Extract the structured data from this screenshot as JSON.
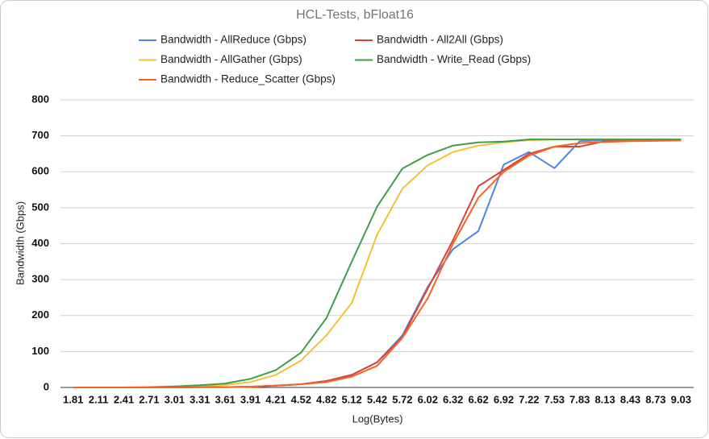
{
  "chart_data": {
    "type": "line",
    "title": "HCL-Tests, bFloat16",
    "x_label": "Log(Bytes)",
    "y_label": "Bandwidth (Gbps)",
    "categories": [
      "1.81",
      "2.11",
      "2.41",
      "2.71",
      "3.01",
      "3.31",
      "3.61",
      "3.91",
      "4.21",
      "4.52",
      "4.82",
      "5.12",
      "5.42",
      "5.72",
      "6.02",
      "6.32",
      "6.62",
      "6.92",
      "7.22",
      "7.53",
      "7.83",
      "8.13",
      "8.43",
      "8.73",
      "9.03"
    ],
    "series": [
      {
        "name": "Bandwidth - AllReduce (Gbps)",
        "color": "#4a86e8",
        "values": [
          0,
          0,
          0,
          0,
          0,
          1,
          1,
          2,
          5,
          9,
          18,
          35,
          70,
          145,
          280,
          385,
          435,
          620,
          655,
          610,
          685,
          688,
          688,
          689,
          690
        ]
      },
      {
        "name": "Bandwidth - All2All (Gbps)",
        "color": "#db4437",
        "values": [
          0,
          0,
          0,
          0,
          0,
          1,
          1,
          2,
          5,
          9,
          18,
          35,
          70,
          140,
          275,
          410,
          560,
          605,
          650,
          670,
          670,
          685,
          686,
          688,
          688
        ]
      },
      {
        "name": "Bandwidth - AllGather (Gbps)",
        "color": "#f1c232",
        "values": [
          0,
          0,
          0,
          1,
          2,
          4,
          7,
          15,
          35,
          75,
          145,
          235,
          425,
          553,
          618,
          655,
          673,
          682,
          688,
          690,
          690,
          690,
          690,
          690,
          690
        ]
      },
      {
        "name": "Bandwidth - Write_Read (Gbps)",
        "color": "#3aa14a",
        "values": [
          0,
          0,
          0,
          1,
          3,
          6,
          11,
          24,
          48,
          97,
          193,
          350,
          503,
          609,
          647,
          673,
          682,
          684,
          690,
          690,
          690,
          690,
          690,
          690,
          690
        ]
      },
      {
        "name": "Bandwidth - Reduce_Scatter (Gbps)",
        "color": "#f46524",
        "values": [
          0,
          0,
          0,
          0,
          0,
          1,
          1,
          2,
          5,
          9,
          15,
          30,
          60,
          138,
          248,
          400,
          528,
          600,
          645,
          670,
          680,
          683,
          685,
          686,
          687
        ]
      }
    ],
    "ylim": [
      0,
      800
    ],
    "yticks": [
      0,
      100,
      200,
      300,
      400,
      500,
      600,
      700,
      800
    ],
    "grid": true
  }
}
